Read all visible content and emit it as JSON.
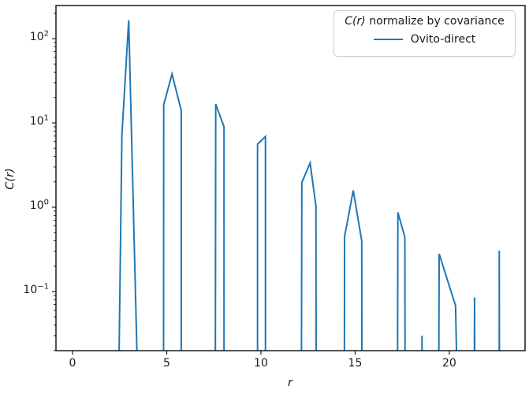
{
  "chart_data": {
    "type": "line",
    "title": "",
    "xlabel": "r",
    "ylabel": "C(r)",
    "xscale": "linear",
    "yscale": "log",
    "xlim": [
      -0.88,
      24.02
    ],
    "ylim": [
      0.0199,
      247
    ],
    "x_tick_values": [
      0,
      5,
      10,
      15,
      20
    ],
    "x_tick_labels": [
      "0",
      "5",
      "10",
      "15",
      "20"
    ],
    "y_tick_exponents": [
      -1,
      0,
      1,
      2
    ],
    "grid": false,
    "legend": {
      "position": "upper right",
      "title_math": "C(r)",
      "title_rest": " normalize by covariance",
      "entries": [
        {
          "label": "Ovito-direct",
          "color": "#1f77b4"
        }
      ]
    },
    "colors": {
      "line": "#1f77b4",
      "spine": "#1a1a1a",
      "legend_border": "#cccccc"
    },
    "series": [
      {
        "name": "Ovito-direct",
        "color": "#1f77b4",
        "linewidth": 2,
        "segments": [
          [
            [
              2.46,
              0.012
            ],
            [
              2.62,
              7.2
            ],
            [
              2.98,
              165
            ],
            [
              3.44,
              0.012
            ]
          ],
          [
            [
              4.83,
              0.012
            ],
            [
              4.84,
              16.5
            ],
            [
              5.28,
              38
            ],
            [
              5.77,
              14
            ],
            [
              5.77,
              0.012
            ]
          ],
          [
            [
              7.58,
              0.012
            ],
            [
              7.6,
              16.7
            ],
            [
              8.04,
              9.0
            ],
            [
              8.04,
              0.012
            ]
          ],
          [
            [
              9.82,
              0.012
            ],
            [
              9.82,
              5.6
            ],
            [
              10.24,
              6.9
            ],
            [
              10.24,
              0.012
            ]
          ],
          [
            [
              12.15,
              0.012
            ],
            [
              12.17,
              1.96
            ],
            [
              12.61,
              3.35
            ],
            [
              12.92,
              1.03
            ],
            [
              12.93,
              0.012
            ]
          ],
          [
            [
              14.43,
              0.012
            ],
            [
              14.44,
              0.45
            ],
            [
              14.9,
              1.58
            ],
            [
              15.35,
              0.4
            ],
            [
              15.36,
              0.012
            ]
          ],
          [
            [
              17.25,
              0.012
            ],
            [
              17.27,
              0.87
            ],
            [
              17.64,
              0.44
            ],
            [
              17.65,
              0.012
            ]
          ],
          [
            [
              18.55,
              0.012
            ],
            [
              18.55,
              0.03
            ],
            [
              18.56,
              0.012
            ]
          ],
          [
            [
              19.44,
              0.012
            ],
            [
              19.46,
              0.28
            ],
            [
              20.33,
              0.068
            ],
            [
              20.4,
              0.012
            ]
          ],
          [
            [
              21.33,
              0.012
            ],
            [
              21.34,
              0.085
            ],
            [
              21.35,
              0.012
            ]
          ],
          [
            [
              22.65,
              0.012
            ],
            [
              22.65,
              0.305
            ],
            [
              22.66,
              0.012
            ]
          ]
        ]
      }
    ]
  }
}
